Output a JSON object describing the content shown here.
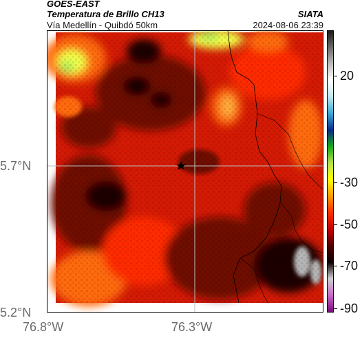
{
  "header": {
    "source": "GOES-EAST",
    "product": "Temperatura de Brillo CH13",
    "agency": "SIATA",
    "region": "Vía Medellín - Quibdó 50km",
    "timestamp": "2024-08-06 23:39"
  },
  "axes": {
    "lat_labels": [
      "5.7°N",
      "5.2°N"
    ],
    "lon_labels": [
      "76.8°W",
      "76.3°W"
    ]
  },
  "colorbar": {
    "labels": [
      "20",
      "-30",
      "-50",
      "-70",
      "-90"
    ],
    "gradient": [
      "#1a1a1a",
      "#6b6b6b",
      "#bdbdbd",
      "#ffffff",
      "#bfe8f0",
      "#39a9d6",
      "#0b2a8a",
      "#18a818",
      "#b7e04a",
      "#ffff00",
      "#ff9a00",
      "#ff2a00",
      "#c40000",
      "#500000",
      "#0a0000",
      "#cfcfcf",
      "#c86bc8",
      "#7a0a7a"
    ]
  },
  "map": {
    "marker_icon": "star-icon",
    "palette": {
      "dark": "#1b0402",
      "maroon": "#6e0c05",
      "red": "#d41a04",
      "bright_red": "#ff2a00",
      "orange": "#ff6a10",
      "light_orange": "#ffb040",
      "yellow": "#f3ff4a",
      "green": "#9be85a",
      "gray": "#b5b5b5"
    }
  }
}
